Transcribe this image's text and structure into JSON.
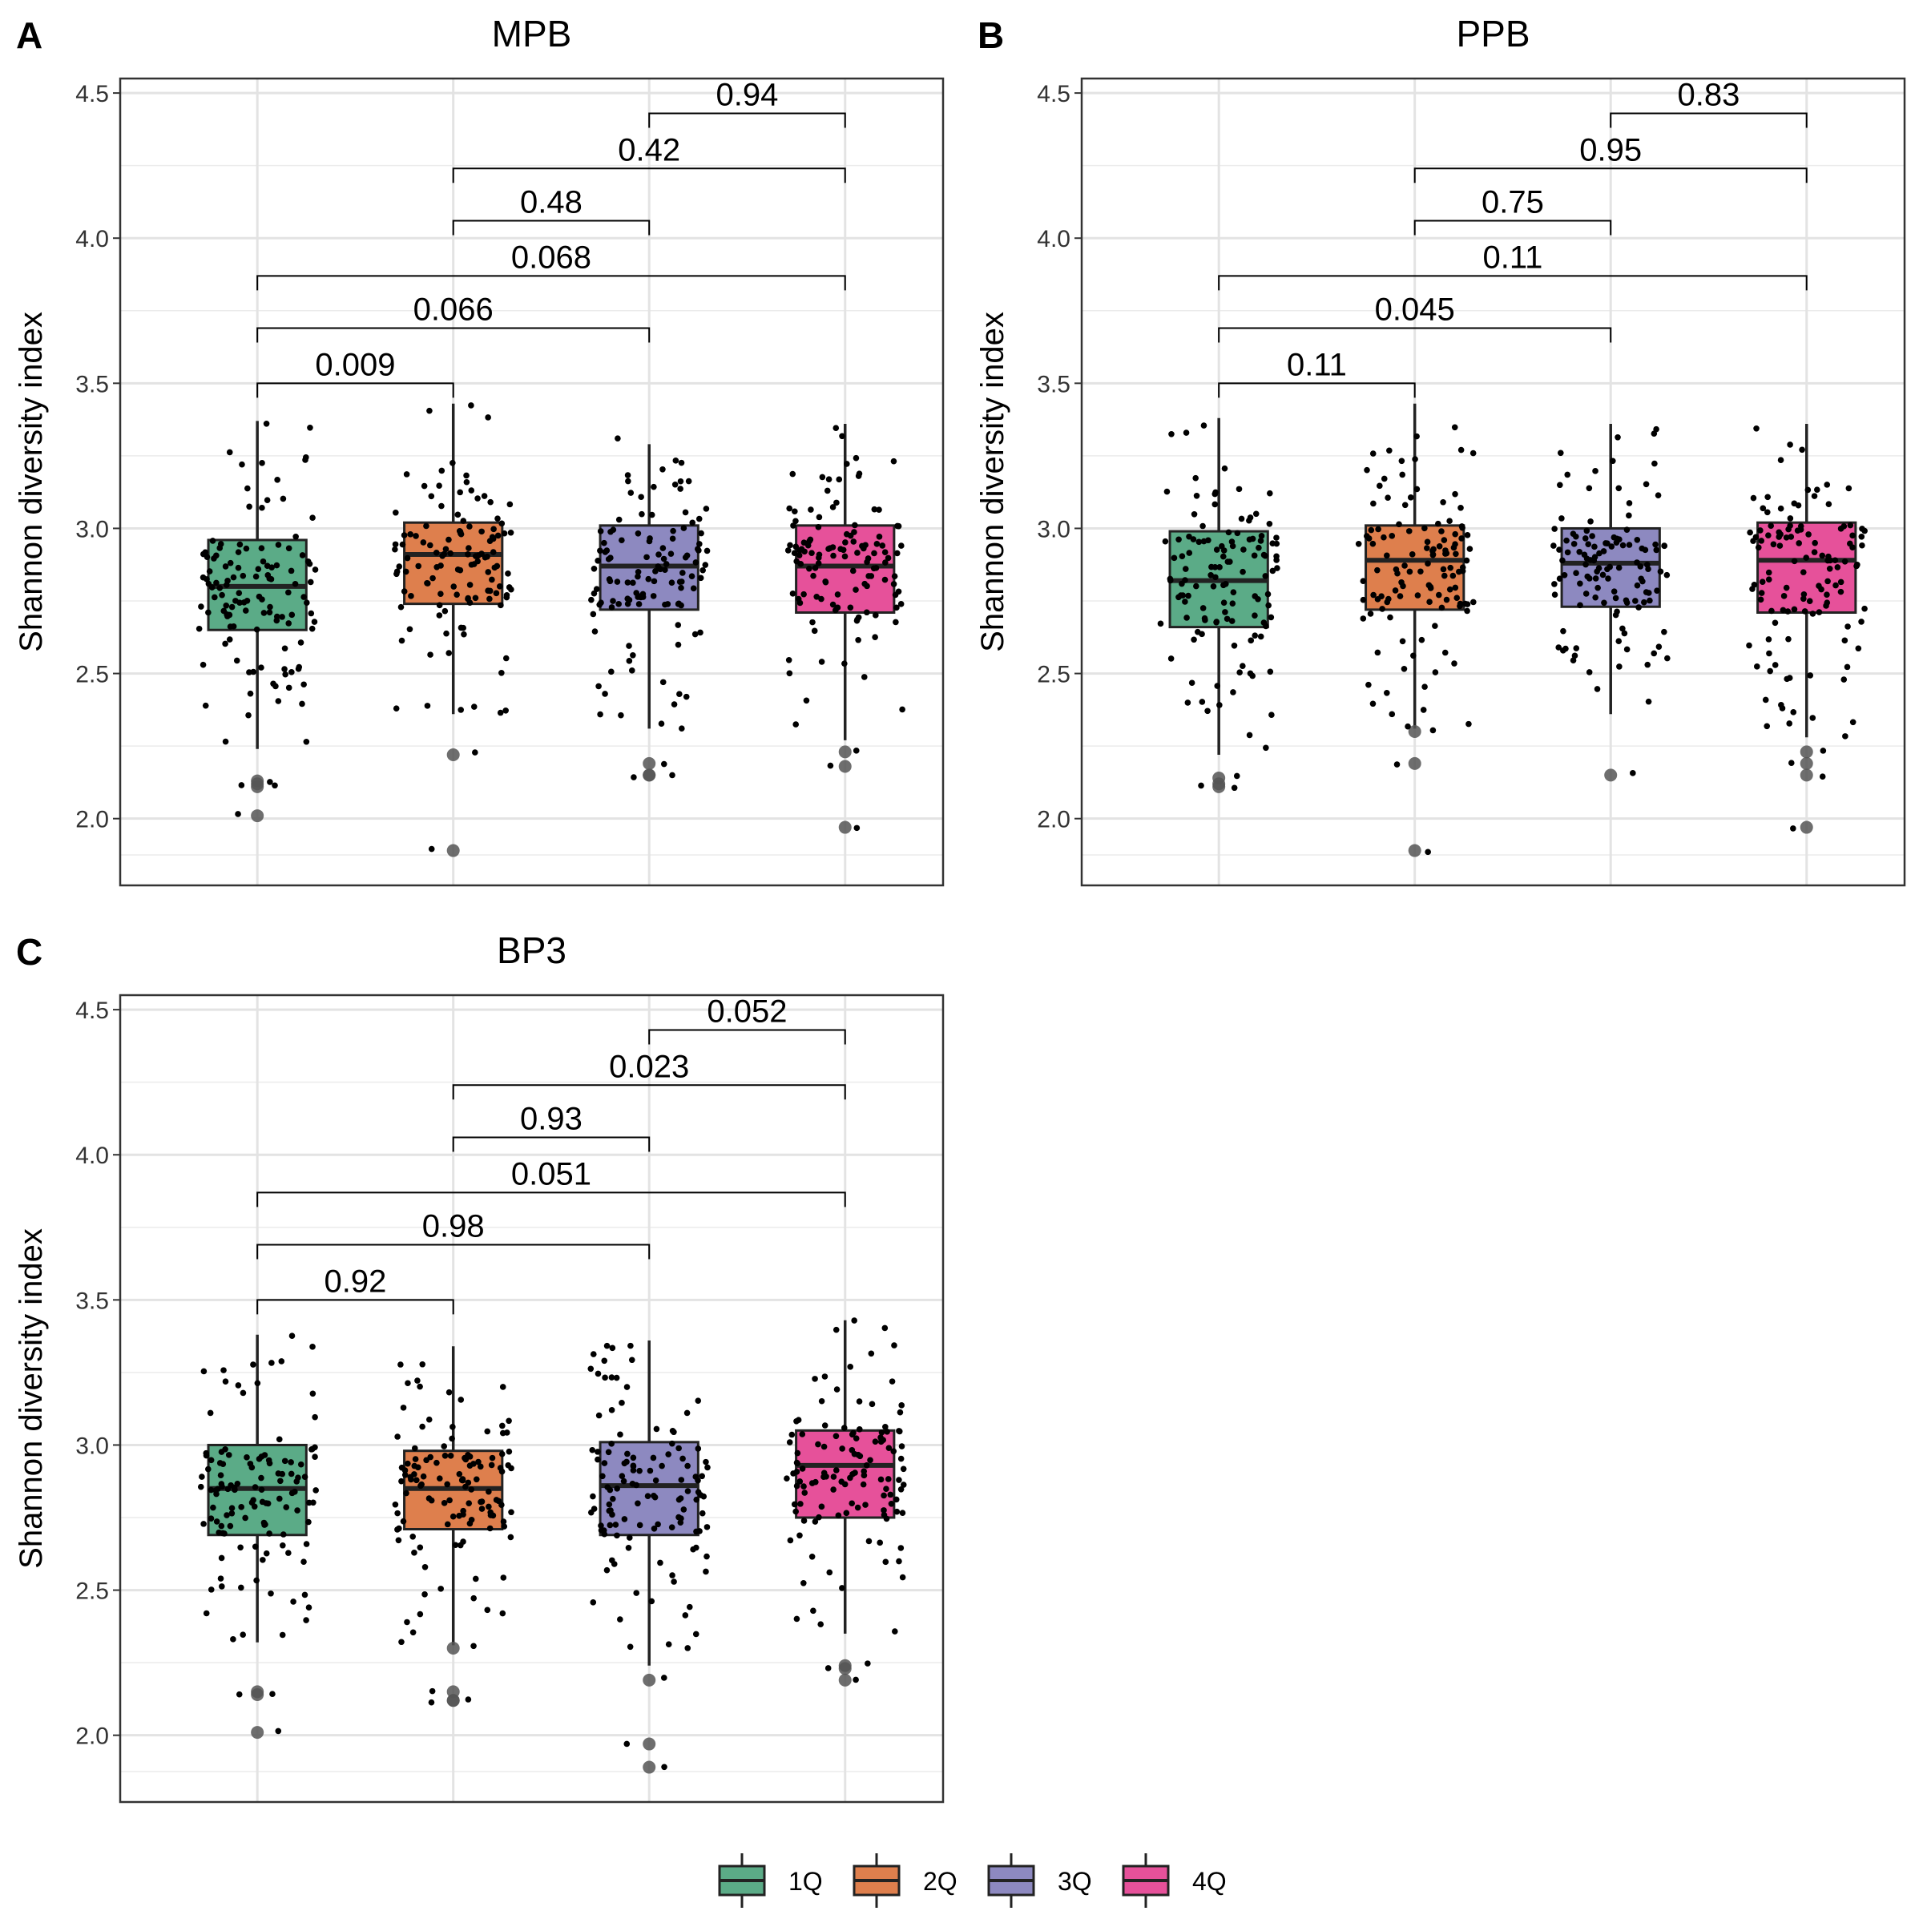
{
  "ylabel": "Shannon diversity index",
  "legend": {
    "items": [
      {
        "label": "1Q",
        "color": "#5bab87"
      },
      {
        "label": "2Q",
        "color": "#de7f4d"
      },
      {
        "label": "3Q",
        "color": "#8d89c0"
      },
      {
        "label": "4Q",
        "color": "#e6519a"
      }
    ]
  },
  "chart_data": [
    {
      "type": "box",
      "panel": "A",
      "title": "MPB",
      "ylabel": "Shannon diversity index",
      "ylim": [
        1.77,
        4.55
      ],
      "yticks": [
        "2.0",
        "2.5",
        "3.0",
        "3.5",
        "4.0",
        "4.5"
      ],
      "categories": [
        "1Q",
        "2Q",
        "3Q",
        "4Q"
      ],
      "boxes": [
        {
          "q1": 2.65,
          "median": 2.8,
          "q3": 2.96,
          "whisker_low": 2.24,
          "whisker_high": 3.37,
          "outliers": [
            2.13,
            2.12,
            2.11,
            2.01
          ]
        },
        {
          "q1": 2.74,
          "median": 2.91,
          "q3": 3.02,
          "whisker_low": 2.36,
          "whisker_high": 3.43,
          "outliers": [
            2.22,
            1.89
          ]
        },
        {
          "q1": 2.72,
          "median": 2.87,
          "q3": 3.01,
          "whisker_low": 2.31,
          "whisker_high": 3.29,
          "outliers": [
            2.19,
            2.15,
            2.15
          ]
        },
        {
          "q1": 2.71,
          "median": 2.87,
          "q3": 3.01,
          "whisker_low": 2.27,
          "whisker_high": 3.36,
          "outliers": [
            2.23,
            2.18,
            1.97
          ]
        }
      ],
      "comparisons": [
        {
          "from": 1,
          "to": 2,
          "p": "0.009",
          "y": 3.5
        },
        {
          "from": 1,
          "to": 3,
          "p": "0.066",
          "y": 3.69
        },
        {
          "from": 1,
          "to": 4,
          "p": "0.068",
          "y": 3.87
        },
        {
          "from": 2,
          "to": 3,
          "p": "0.48",
          "y": 4.06
        },
        {
          "from": 2,
          "to": 4,
          "p": "0.42",
          "y": 4.24
        },
        {
          "from": 3,
          "to": 4,
          "p": "0.94",
          "y": 4.43
        }
      ]
    },
    {
      "type": "box",
      "panel": "B",
      "title": "PPB",
      "ylabel": "Shannon diversity index",
      "ylim": [
        1.77,
        4.55
      ],
      "yticks": [
        "2.0",
        "2.5",
        "3.0",
        "3.5",
        "4.0",
        "4.5"
      ],
      "categories": [
        "1Q",
        "2Q",
        "3Q",
        "4Q"
      ],
      "boxes": [
        {
          "q1": 2.66,
          "median": 2.82,
          "q3": 2.99,
          "whisker_low": 2.22,
          "whisker_high": 3.38,
          "outliers": [
            2.14,
            2.12,
            2.11
          ]
        },
        {
          "q1": 2.72,
          "median": 2.89,
          "q3": 3.01,
          "whisker_low": 2.31,
          "whisker_high": 3.43,
          "outliers": [
            2.3,
            2.19,
            1.89
          ]
        },
        {
          "q1": 2.73,
          "median": 2.88,
          "q3": 3.0,
          "whisker_low": 2.36,
          "whisker_high": 3.36,
          "outliers": [
            2.15
          ]
        },
        {
          "q1": 2.71,
          "median": 2.89,
          "q3": 3.02,
          "whisker_low": 2.28,
          "whisker_high": 3.36,
          "outliers": [
            2.23,
            2.19,
            2.15,
            1.97
          ]
        }
      ],
      "comparisons": [
        {
          "from": 1,
          "to": 2,
          "p": "0.11",
          "y": 3.5
        },
        {
          "from": 1,
          "to": 3,
          "p": "0.045",
          "y": 3.69
        },
        {
          "from": 1,
          "to": 4,
          "p": "0.11",
          "y": 3.87
        },
        {
          "from": 2,
          "to": 3,
          "p": "0.75",
          "y": 4.06
        },
        {
          "from": 2,
          "to": 4,
          "p": "0.95",
          "y": 4.24
        },
        {
          "from": 3,
          "to": 4,
          "p": "0.83",
          "y": 4.43
        }
      ]
    },
    {
      "type": "box",
      "panel": "C",
      "title": "BP3",
      "ylabel": "Shannon diversity index",
      "ylim": [
        1.77,
        4.55
      ],
      "yticks": [
        "2.0",
        "2.5",
        "3.0",
        "3.5",
        "4.0",
        "4.5"
      ],
      "categories": [
        "1Q",
        "2Q",
        "3Q",
        "4Q"
      ],
      "boxes": [
        {
          "q1": 2.69,
          "median": 2.85,
          "q3": 3.0,
          "whisker_low": 2.32,
          "whisker_high": 3.38,
          "outliers": [
            2.15,
            2.14,
            2.01
          ]
        },
        {
          "q1": 2.71,
          "median": 2.85,
          "q3": 2.98,
          "whisker_low": 2.31,
          "whisker_high": 3.34,
          "outliers": [
            2.3,
            2.15,
            2.12,
            2.12
          ]
        },
        {
          "q1": 2.69,
          "median": 2.86,
          "q3": 3.01,
          "whisker_low": 2.24,
          "whisker_high": 3.36,
          "outliers": [
            2.19,
            1.97,
            1.89
          ]
        },
        {
          "q1": 2.75,
          "median": 2.93,
          "q3": 3.05,
          "whisker_low": 2.35,
          "whisker_high": 3.43,
          "outliers": [
            2.24,
            2.23,
            2.19
          ]
        }
      ],
      "comparisons": [
        {
          "from": 1,
          "to": 2,
          "p": "0.92",
          "y": 3.5
        },
        {
          "from": 1,
          "to": 3,
          "p": "0.98",
          "y": 3.69
        },
        {
          "from": 1,
          "to": 4,
          "p": "0.051",
          "y": 3.87
        },
        {
          "from": 2,
          "to": 3,
          "p": "0.93",
          "y": 4.06
        },
        {
          "from": 2,
          "to": 4,
          "p": "0.023",
          "y": 4.24
        },
        {
          "from": 3,
          "to": 4,
          "p": "0.052",
          "y": 4.43
        }
      ]
    }
  ]
}
